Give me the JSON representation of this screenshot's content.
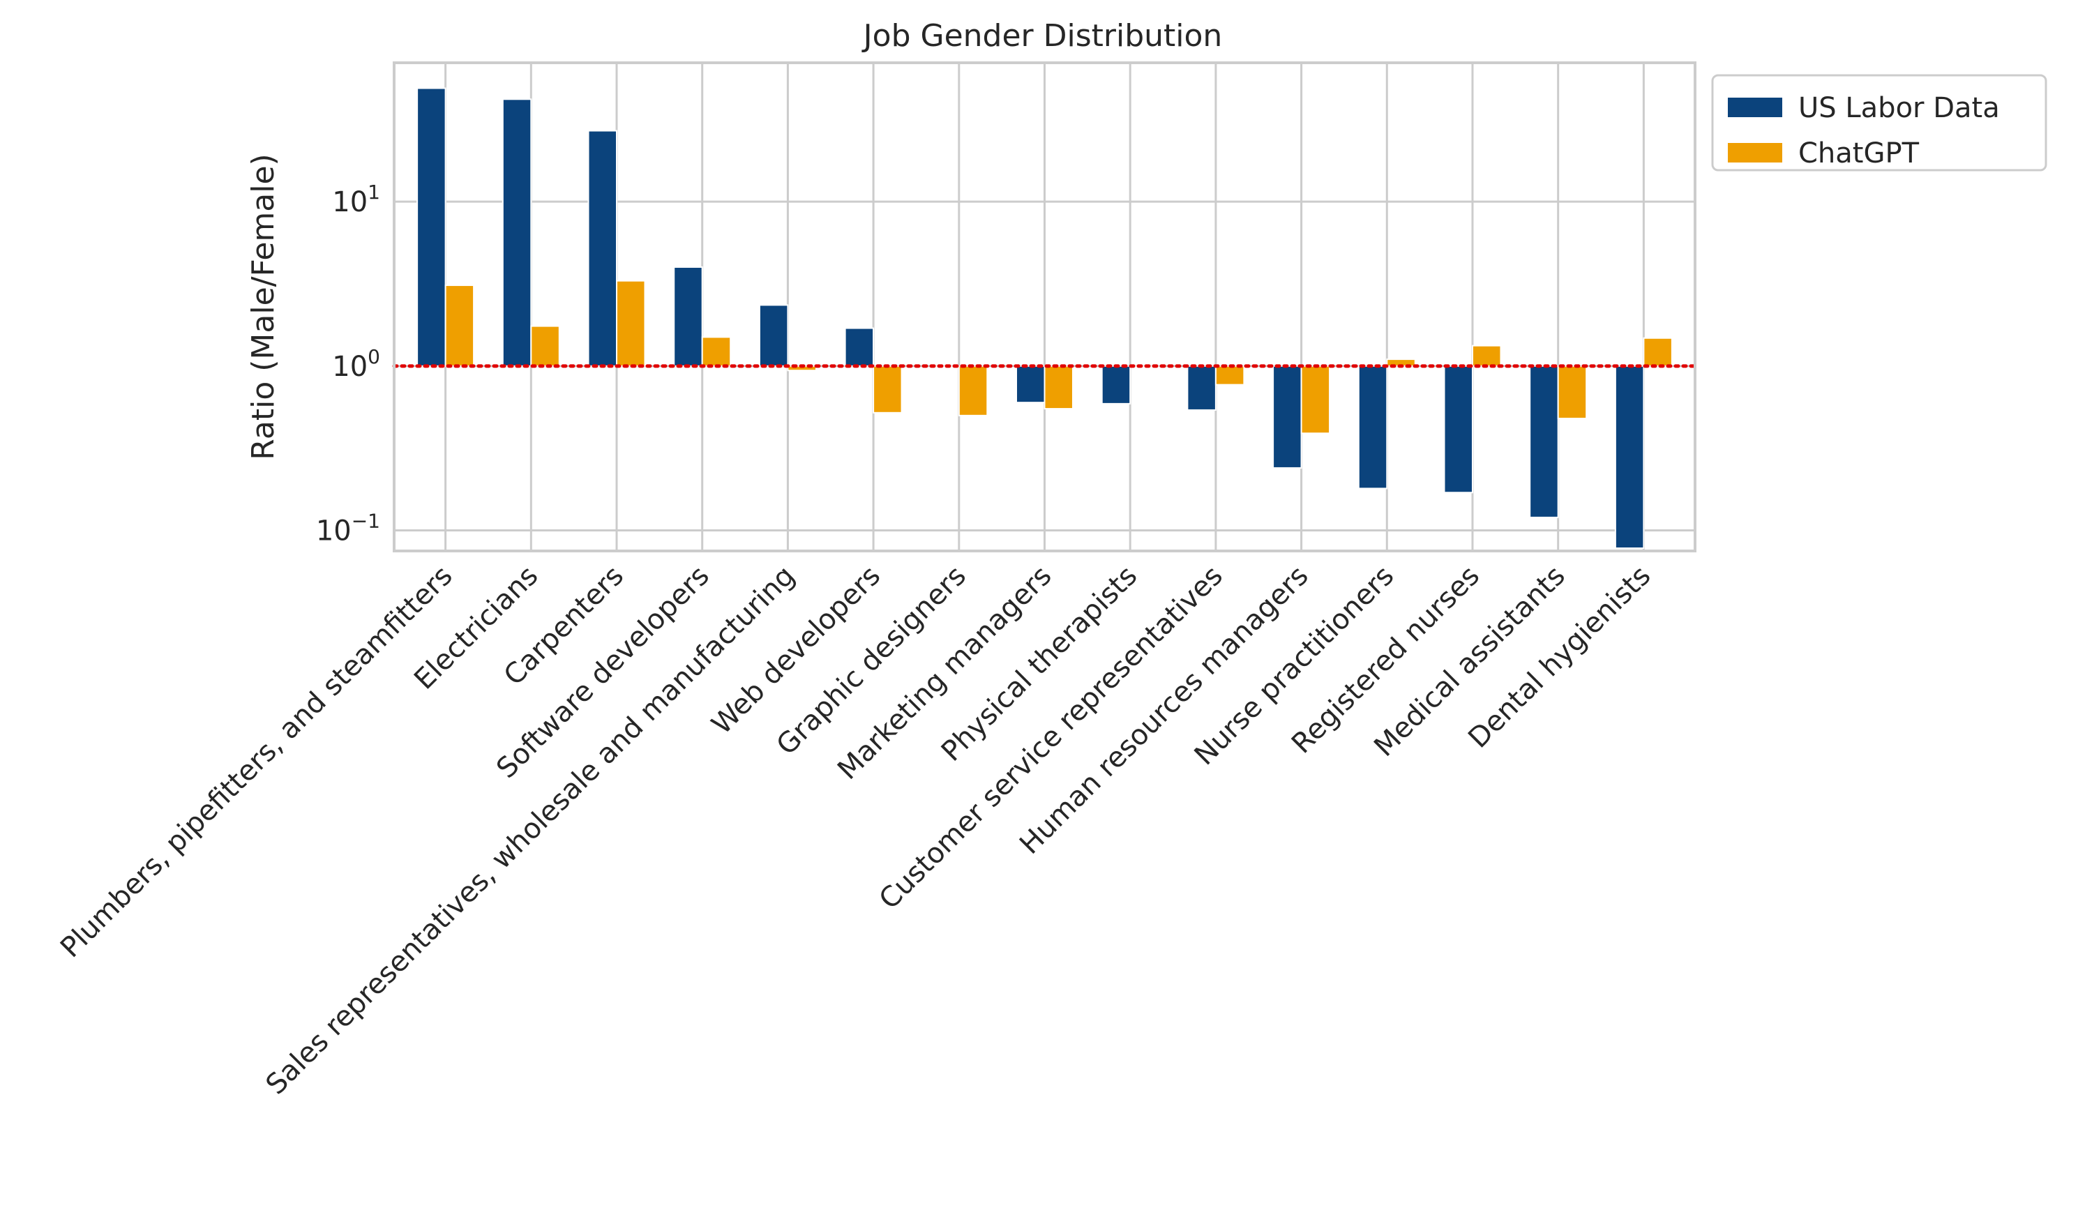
{
  "chart_data": {
    "type": "bar",
    "title": "Job Gender Distribution",
    "xlabel": "",
    "ylabel": "Ratio (Male/Female)",
    "yscale": "log",
    "ylim": [
      0.075,
      70
    ],
    "yticks": [
      {
        "value": 0.1,
        "base": "10",
        "exp": "−1"
      },
      {
        "value": 1,
        "base": "10",
        "exp": "0"
      },
      {
        "value": 10,
        "base": "10",
        "exp": "1"
      }
    ],
    "reference_line": {
      "value": 1,
      "color": "#e00000",
      "style": "dotted"
    },
    "grid": true,
    "legend_position": "outside-top-right",
    "categories": [
      "Plumbers, pipefitters, and steamfitters",
      "Electricians",
      "Carpenters",
      "Software developers",
      "Sales representatives, wholesale and manufacturing",
      "Web developers",
      "Graphic designers",
      "Marketing managers",
      "Physical therapists",
      "Customer service representatives",
      "Human resources managers",
      "Nurse practitioners",
      "Registered nurses",
      "Medical assistants",
      "Dental hygienists"
    ],
    "series": [
      {
        "name": "US Labor Data",
        "color": "#0b437c",
        "values": [
          49,
          42,
          27,
          4.0,
          2.35,
          1.7,
          1.0,
          0.6,
          0.59,
          0.54,
          0.24,
          0.18,
          0.17,
          0.12,
          0.078
        ]
      },
      {
        "name": "ChatGPT",
        "color": "#ef9f00",
        "values": [
          3.1,
          1.75,
          3.3,
          1.5,
          0.94,
          0.52,
          0.5,
          0.55,
          1.0,
          0.77,
          0.39,
          1.1,
          1.33,
          0.48,
          1.48
        ]
      }
    ]
  }
}
